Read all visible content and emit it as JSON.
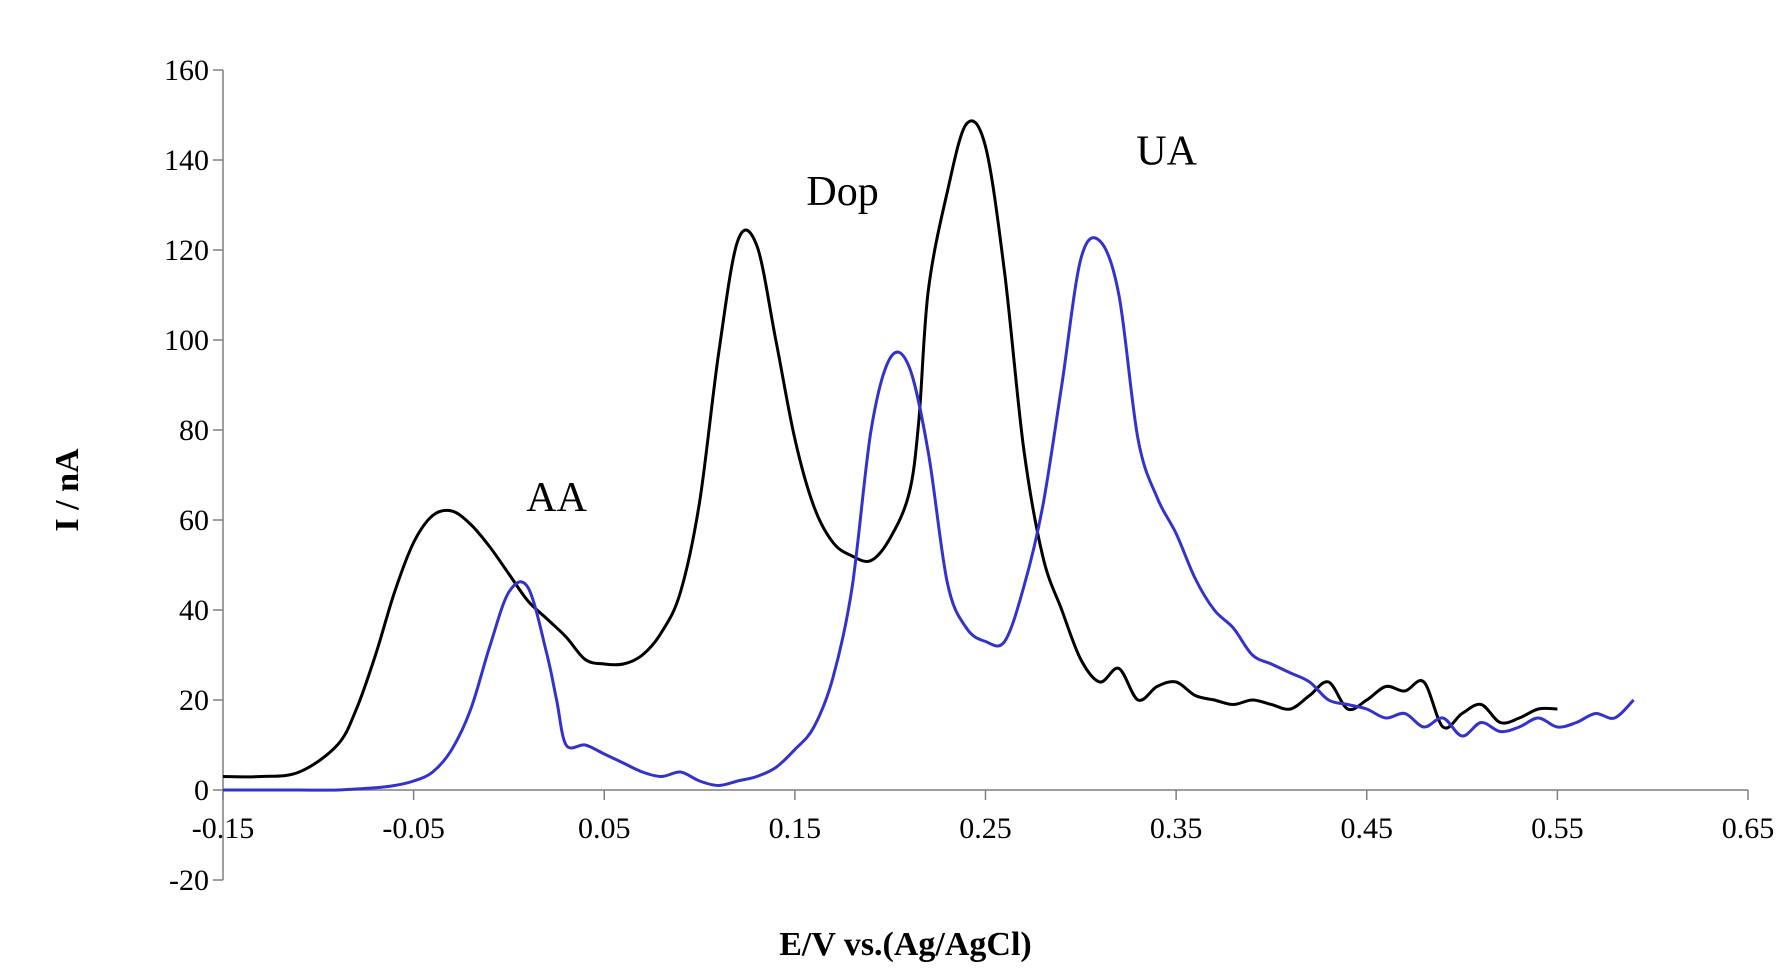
{
  "chart_data": {
    "type": "line",
    "xlabel": "E/V vs.(Ag/AgCl)",
    "ylabel": "I / nA",
    "xlim": [
      -0.15,
      0.65
    ],
    "ylim": [
      -20,
      160
    ],
    "x_ticks": [
      "-0.15",
      "-0.05",
      "0.05",
      "0.15",
      "0.25",
      "0.35",
      "0.45",
      "0.55",
      "0.65"
    ],
    "y_ticks": [
      "-20",
      "0",
      "20",
      "40",
      "60",
      "80",
      "100",
      "120",
      "140",
      "160"
    ],
    "annotations": [
      {
        "text": "AA",
        "x": 0.025,
        "y": 62
      },
      {
        "text": "Dop",
        "x": 0.175,
        "y": 130
      },
      {
        "text": "UA",
        "x": 0.345,
        "y": 139
      }
    ],
    "series": [
      {
        "color": "#000000",
        "x": [
          -0.15,
          -0.13,
          -0.11,
          -0.09,
          -0.08,
          -0.07,
          -0.06,
          -0.05,
          -0.04,
          -0.03,
          -0.02,
          -0.01,
          0.0,
          0.01,
          0.02,
          0.03,
          0.04,
          0.05,
          0.06,
          0.07,
          0.08,
          0.09,
          0.1,
          0.11,
          0.12,
          0.13,
          0.14,
          0.15,
          0.16,
          0.17,
          0.18,
          0.19,
          0.2,
          0.21,
          0.215,
          0.22,
          0.23,
          0.24,
          0.25,
          0.26,
          0.27,
          0.28,
          0.29,
          0.3,
          0.31,
          0.32,
          0.33,
          0.34,
          0.35,
          0.36,
          0.37,
          0.38,
          0.39,
          0.4,
          0.41,
          0.42,
          0.43,
          0.44,
          0.45,
          0.46,
          0.47,
          0.48,
          0.49,
          0.5,
          0.51,
          0.52,
          0.53,
          0.54,
          0.55
        ],
        "values": [
          3,
          3,
          4,
          10,
          18,
          30,
          44,
          55,
          61,
          62,
          59,
          54,
          48,
          42,
          38,
          34,
          29,
          28,
          28,
          30,
          35,
          44,
          64,
          97,
          122,
          121,
          100,
          78,
          63,
          55,
          52,
          51,
          56,
          66,
          82,
          111,
          133,
          148,
          143,
          115,
          76,
          52,
          40,
          29,
          24,
          27,
          20,
          23,
          24,
          21,
          20,
          19,
          20,
          19,
          18,
          21,
          24,
          18,
          20,
          23,
          22,
          24,
          14,
          17,
          19,
          15,
          16,
          18,
          18
        ]
      },
      {
        "color": "#3333cc",
        "x": [
          -0.15,
          -0.13,
          -0.11,
          -0.09,
          -0.07,
          -0.06,
          -0.05,
          -0.04,
          -0.03,
          -0.02,
          -0.01,
          0.0,
          0.01,
          0.02,
          0.025,
          0.03,
          0.04,
          0.05,
          0.06,
          0.07,
          0.08,
          0.09,
          0.1,
          0.11,
          0.12,
          0.13,
          0.14,
          0.15,
          0.16,
          0.17,
          0.18,
          0.19,
          0.2,
          0.21,
          0.22,
          0.23,
          0.24,
          0.25,
          0.26,
          0.27,
          0.28,
          0.29,
          0.3,
          0.31,
          0.32,
          0.33,
          0.34,
          0.35,
          0.36,
          0.37,
          0.38,
          0.39,
          0.4,
          0.41,
          0.42,
          0.43,
          0.44,
          0.45,
          0.46,
          0.47,
          0.48,
          0.49,
          0.5,
          0.51,
          0.52,
          0.53,
          0.54,
          0.55,
          0.56,
          0.57,
          0.58,
          0.59
        ],
        "values": [
          0,
          0,
          0,
          0,
          0.5,
          1,
          2,
          4,
          9,
          18,
          32,
          44,
          45,
          30,
          20,
          10,
          10,
          8,
          6,
          4,
          3,
          4,
          2,
          1,
          2,
          3,
          5,
          9,
          14,
          25,
          45,
          80,
          96,
          94,
          75,
          46,
          36,
          33,
          33,
          45,
          63,
          90,
          118,
          122,
          110,
          78,
          65,
          57,
          47,
          40,
          36,
          30,
          28,
          26,
          24,
          20,
          19,
          18,
          16,
          17,
          14,
          16,
          12,
          15,
          13,
          14,
          16,
          14,
          15,
          17,
          16,
          20
        ]
      }
    ]
  }
}
